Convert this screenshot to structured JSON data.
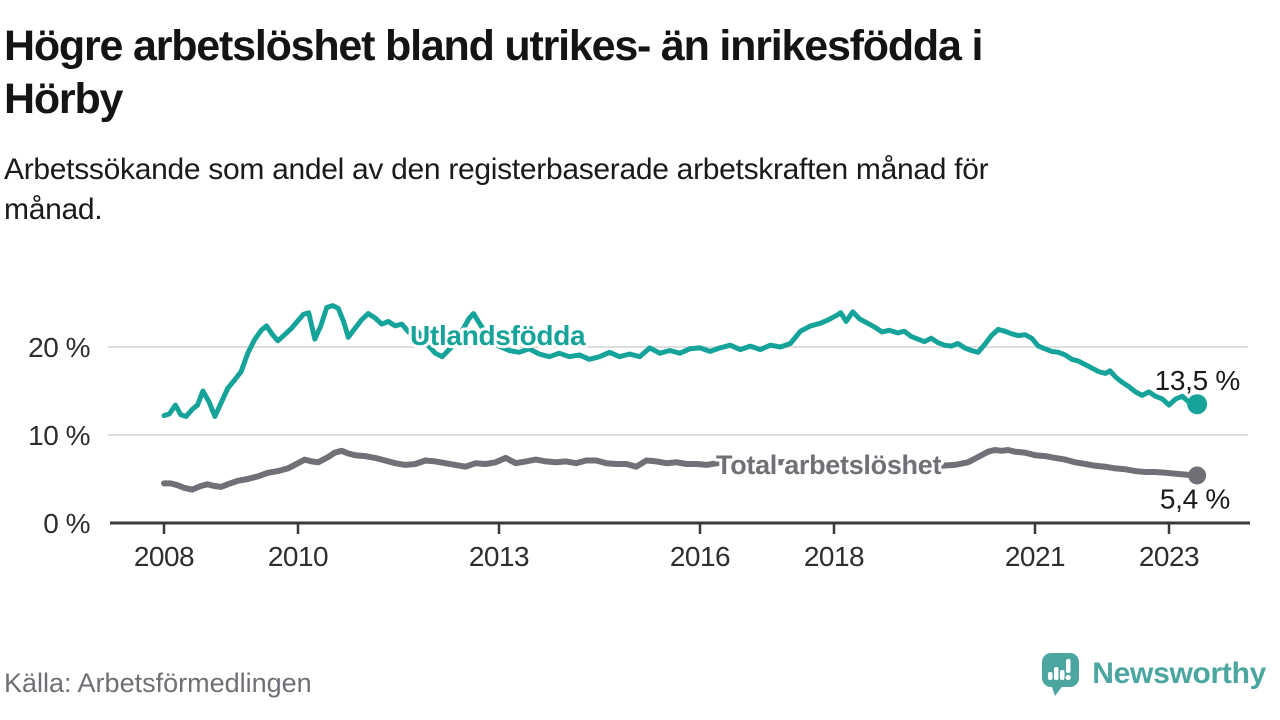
{
  "header": {
    "title_lines": [
      "Högre arbetslöshet bland utrikes- än inrikesfödda i",
      "Hörby"
    ],
    "subtitle_lines": [
      "Arbetssökande som andel av den registerbaserade arbetskraften månad för",
      "månad."
    ]
  },
  "footer": {
    "source": "Källa: Arbetsförmedlingen",
    "brand_name": "Newsworthy"
  },
  "colors": {
    "teal_line": "#16a39a",
    "gray_line": "#717076",
    "axis": "#3a3a3a",
    "gridline": "#dedede",
    "tick_text": "#2e2e2e",
    "value_text": "#1a1a1a",
    "source_text": "#6e7076",
    "brand_teal": "#4ba6a0"
  },
  "chart_data": {
    "type": "line",
    "title": "Högre arbetslöshet bland utrikes- än inrikesfödda i Hörby",
    "subtitle": "Arbetssökande som andel av den registerbaserade arbetskraften månad för månad.",
    "xlabel": "",
    "ylabel": "",
    "grid": "horizontal",
    "legend_position": "inline-labels",
    "x_axis": {
      "ticks": [
        2008,
        2010,
        2013,
        2016,
        2018,
        2021,
        2023
      ],
      "range": [
        2008.0,
        2023.42
      ]
    },
    "y_axis": {
      "ticks": [
        {
          "value": 0,
          "label": "0 %"
        },
        {
          "value": 10,
          "label": "10 %"
        },
        {
          "value": 20,
          "label": "20 %"
        }
      ],
      "range": [
        0,
        25.8
      ],
      "unit": "%"
    },
    "series": [
      {
        "name": "Total arbetslöshet",
        "color": "#717076",
        "end_label": "5,4 %",
        "end_value": 5.4,
        "points": [
          [
            2008.0,
            4.5
          ],
          [
            2008.1,
            4.5
          ],
          [
            2008.2,
            4.3
          ],
          [
            2008.3,
            4.0
          ],
          [
            2008.42,
            3.8
          ],
          [
            2008.55,
            4.2
          ],
          [
            2008.65,
            4.4
          ],
          [
            2008.75,
            4.2
          ],
          [
            2008.85,
            4.1
          ],
          [
            2008.95,
            4.4
          ],
          [
            2009.1,
            4.8
          ],
          [
            2009.25,
            5.0
          ],
          [
            2009.4,
            5.3
          ],
          [
            2009.55,
            5.7
          ],
          [
            2009.7,
            5.9
          ],
          [
            2009.85,
            6.2
          ],
          [
            2010.0,
            6.8
          ],
          [
            2010.1,
            7.2
          ],
          [
            2010.2,
            7.0
          ],
          [
            2010.3,
            6.9
          ],
          [
            2010.45,
            7.5
          ],
          [
            2010.55,
            8.0
          ],
          [
            2010.65,
            8.2
          ],
          [
            2010.75,
            7.9
          ],
          [
            2010.85,
            7.7
          ],
          [
            2011.0,
            7.6
          ],
          [
            2011.15,
            7.4
          ],
          [
            2011.3,
            7.1
          ],
          [
            2011.45,
            6.8
          ],
          [
            2011.6,
            6.6
          ],
          [
            2011.75,
            6.7
          ],
          [
            2011.9,
            7.1
          ],
          [
            2012.05,
            7.0
          ],
          [
            2012.2,
            6.8
          ],
          [
            2012.35,
            6.6
          ],
          [
            2012.5,
            6.4
          ],
          [
            2012.65,
            6.8
          ],
          [
            2012.8,
            6.7
          ],
          [
            2012.95,
            6.9
          ],
          [
            2013.1,
            7.4
          ],
          [
            2013.25,
            6.8
          ],
          [
            2013.4,
            7.0
          ],
          [
            2013.55,
            7.2
          ],
          [
            2013.7,
            7.0
          ],
          [
            2013.85,
            6.9
          ],
          [
            2014.0,
            7.0
          ],
          [
            2014.15,
            6.8
          ],
          [
            2014.3,
            7.1
          ],
          [
            2014.45,
            7.1
          ],
          [
            2014.6,
            6.8
          ],
          [
            2014.75,
            6.7
          ],
          [
            2014.9,
            6.7
          ],
          [
            2015.05,
            6.4
          ],
          [
            2015.2,
            7.1
          ],
          [
            2015.35,
            7.0
          ],
          [
            2015.5,
            6.8
          ],
          [
            2015.65,
            6.9
          ],
          [
            2015.8,
            6.7
          ],
          [
            2015.95,
            6.7
          ],
          [
            2016.1,
            6.6
          ],
          [
            2016.25,
            6.8
          ],
          [
            2016.4,
            6.9
          ],
          [
            2016.6,
            6.8
          ],
          [
            2016.8,
            6.9
          ],
          [
            2017.0,
            7.0
          ],
          [
            2017.2,
            6.9
          ],
          [
            2017.4,
            7.0
          ],
          [
            2017.6,
            6.9
          ],
          [
            2017.8,
            6.8
          ],
          [
            2018.0,
            6.9
          ],
          [
            2018.2,
            6.8
          ],
          [
            2018.4,
            6.7
          ],
          [
            2018.6,
            6.6
          ],
          [
            2018.8,
            6.7
          ],
          [
            2019.0,
            6.6
          ],
          [
            2019.2,
            6.5
          ],
          [
            2019.4,
            6.6
          ],
          [
            2019.6,
            6.5
          ],
          [
            2019.8,
            6.6
          ],
          [
            2020.0,
            6.9
          ],
          [
            2020.15,
            7.5
          ],
          [
            2020.3,
            8.1
          ],
          [
            2020.4,
            8.3
          ],
          [
            2020.5,
            8.2
          ],
          [
            2020.6,
            8.3
          ],
          [
            2020.7,
            8.1
          ],
          [
            2020.85,
            8.0
          ],
          [
            2021.0,
            7.7
          ],
          [
            2021.15,
            7.6
          ],
          [
            2021.3,
            7.4
          ],
          [
            2021.45,
            7.2
          ],
          [
            2021.6,
            6.9
          ],
          [
            2021.75,
            6.7
          ],
          [
            2021.9,
            6.5
          ],
          [
            2022.05,
            6.4
          ],
          [
            2022.2,
            6.2
          ],
          [
            2022.35,
            6.1
          ],
          [
            2022.5,
            5.9
          ],
          [
            2022.65,
            5.8
          ],
          [
            2022.8,
            5.8
          ],
          [
            2022.95,
            5.7
          ],
          [
            2023.1,
            5.6
          ],
          [
            2023.25,
            5.5
          ],
          [
            2023.42,
            5.4
          ]
        ]
      },
      {
        "name": "Utlandsfödda",
        "color": "#16a39a",
        "end_label": "13,5 %",
        "end_value": 13.5,
        "points": [
          [
            2008.0,
            12.2
          ],
          [
            2008.08,
            12.4
          ],
          [
            2008.17,
            13.4
          ],
          [
            2008.25,
            12.3
          ],
          [
            2008.33,
            12.1
          ],
          [
            2008.42,
            12.9
          ],
          [
            2008.5,
            13.4
          ],
          [
            2008.58,
            15.0
          ],
          [
            2008.67,
            13.8
          ],
          [
            2008.76,
            12.1
          ],
          [
            2008.85,
            13.6
          ],
          [
            2008.95,
            15.3
          ],
          [
            2009.05,
            16.2
          ],
          [
            2009.15,
            17.2
          ],
          [
            2009.25,
            19.3
          ],
          [
            2009.35,
            20.8
          ],
          [
            2009.45,
            21.9
          ],
          [
            2009.53,
            22.4
          ],
          [
            2009.62,
            21.4
          ],
          [
            2009.7,
            20.7
          ],
          [
            2009.8,
            21.4
          ],
          [
            2009.9,
            22.1
          ],
          [
            2010.0,
            23.0
          ],
          [
            2010.08,
            23.7
          ],
          [
            2010.16,
            23.9
          ],
          [
            2010.25,
            20.9
          ],
          [
            2010.34,
            22.4
          ],
          [
            2010.43,
            24.5
          ],
          [
            2010.52,
            24.7
          ],
          [
            2010.6,
            24.4
          ],
          [
            2010.68,
            22.9
          ],
          [
            2010.75,
            21.1
          ],
          [
            2010.85,
            22.1
          ],
          [
            2010.95,
            23.1
          ],
          [
            2011.05,
            23.8
          ],
          [
            2011.15,
            23.3
          ],
          [
            2011.25,
            22.6
          ],
          [
            2011.35,
            22.9
          ],
          [
            2011.45,
            22.4
          ],
          [
            2011.55,
            22.6
          ],
          [
            2011.65,
            21.7
          ],
          [
            2011.75,
            22.1
          ],
          [
            2011.85,
            21.1
          ],
          [
            2011.95,
            20.1
          ],
          [
            2012.05,
            19.3
          ],
          [
            2012.15,
            18.9
          ],
          [
            2012.28,
            19.9
          ],
          [
            2012.42,
            21.4
          ],
          [
            2012.55,
            23.2
          ],
          [
            2012.62,
            23.8
          ],
          [
            2012.7,
            22.8
          ],
          [
            2012.8,
            21.6
          ],
          [
            2012.9,
            20.8
          ],
          [
            2013.0,
            20.1
          ],
          [
            2013.15,
            19.6
          ],
          [
            2013.3,
            19.4
          ],
          [
            2013.45,
            19.8
          ],
          [
            2013.6,
            19.2
          ],
          [
            2013.75,
            18.9
          ],
          [
            2013.9,
            19.3
          ],
          [
            2014.05,
            18.9
          ],
          [
            2014.2,
            19.1
          ],
          [
            2014.35,
            18.6
          ],
          [
            2014.5,
            18.9
          ],
          [
            2014.65,
            19.4
          ],
          [
            2014.8,
            18.9
          ],
          [
            2014.95,
            19.2
          ],
          [
            2015.1,
            18.9
          ],
          [
            2015.25,
            19.9
          ],
          [
            2015.4,
            19.3
          ],
          [
            2015.55,
            19.6
          ],
          [
            2015.7,
            19.3
          ],
          [
            2015.85,
            19.8
          ],
          [
            2016.0,
            19.9
          ],
          [
            2016.15,
            19.5
          ],
          [
            2016.3,
            19.9
          ],
          [
            2016.45,
            20.2
          ],
          [
            2016.6,
            19.7
          ],
          [
            2016.75,
            20.1
          ],
          [
            2016.9,
            19.7
          ],
          [
            2017.05,
            20.2
          ],
          [
            2017.2,
            20.0
          ],
          [
            2017.35,
            20.4
          ],
          [
            2017.5,
            21.8
          ],
          [
            2017.65,
            22.4
          ],
          [
            2017.8,
            22.7
          ],
          [
            2017.92,
            23.1
          ],
          [
            2018.04,
            23.6
          ],
          [
            2018.1,
            23.9
          ],
          [
            2018.18,
            22.9
          ],
          [
            2018.28,
            24.0
          ],
          [
            2018.38,
            23.2
          ],
          [
            2018.5,
            22.7
          ],
          [
            2018.62,
            22.2
          ],
          [
            2018.72,
            21.7
          ],
          [
            2018.82,
            21.9
          ],
          [
            2018.95,
            21.6
          ],
          [
            2019.05,
            21.8
          ],
          [
            2019.15,
            21.2
          ],
          [
            2019.25,
            20.9
          ],
          [
            2019.35,
            20.6
          ],
          [
            2019.45,
            21.0
          ],
          [
            2019.55,
            20.5
          ],
          [
            2019.65,
            20.2
          ],
          [
            2019.75,
            20.1
          ],
          [
            2019.85,
            20.4
          ],
          [
            2019.95,
            19.9
          ],
          [
            2020.05,
            19.6
          ],
          [
            2020.15,
            19.4
          ],
          [
            2020.25,
            20.3
          ],
          [
            2020.35,
            21.3
          ],
          [
            2020.45,
            22.0
          ],
          [
            2020.55,
            21.8
          ],
          [
            2020.65,
            21.5
          ],
          [
            2020.75,
            21.3
          ],
          [
            2020.85,
            21.4
          ],
          [
            2020.95,
            21.0
          ],
          [
            2021.05,
            20.1
          ],
          [
            2021.15,
            19.8
          ],
          [
            2021.25,
            19.5
          ],
          [
            2021.35,
            19.4
          ],
          [
            2021.45,
            19.1
          ],
          [
            2021.55,
            18.6
          ],
          [
            2021.65,
            18.4
          ],
          [
            2021.75,
            18.0
          ],
          [
            2021.85,
            17.6
          ],
          [
            2021.95,
            17.2
          ],
          [
            2022.05,
            17.0
          ],
          [
            2022.12,
            17.3
          ],
          [
            2022.2,
            16.6
          ],
          [
            2022.3,
            16.0
          ],
          [
            2022.4,
            15.5
          ],
          [
            2022.5,
            14.9
          ],
          [
            2022.6,
            14.5
          ],
          [
            2022.7,
            14.9
          ],
          [
            2022.8,
            14.4
          ],
          [
            2022.9,
            14.1
          ],
          [
            2023.0,
            13.4
          ],
          [
            2023.1,
            14.1
          ],
          [
            2023.2,
            14.4
          ],
          [
            2023.3,
            13.7
          ],
          [
            2023.42,
            13.5
          ]
        ]
      }
    ]
  }
}
